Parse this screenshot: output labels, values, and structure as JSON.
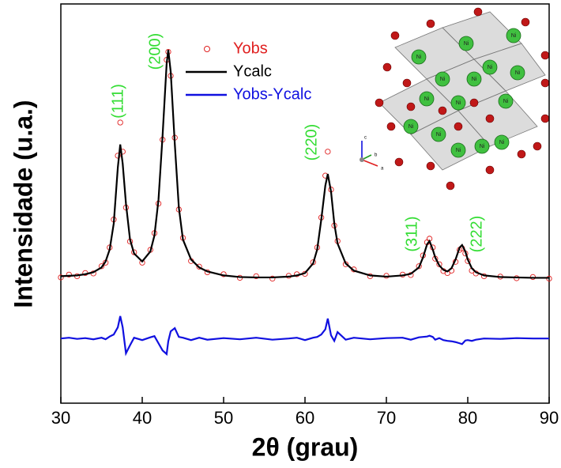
{
  "chart_data": {
    "type": "line",
    "x_label": "2θ (grau)",
    "y_label": "Intensidade (u.a.)",
    "xlim": [
      30,
      90
    ],
    "xticks": [
      30,
      40,
      50,
      60,
      70,
      80,
      90
    ],
    "ylim": [
      0,
      100
    ],
    "legend": "upper center",
    "x": [
      30,
      31,
      32,
      33,
      34,
      35,
      35.5,
      36,
      36.5,
      37,
      37.3,
      37.6,
      38,
      38.5,
      39,
      40,
      41,
      41.5,
      42,
      42.5,
      43,
      43.2,
      43.5,
      44,
      44.5,
      45,
      46,
      47,
      48,
      50,
      52,
      54,
      56,
      58,
      59,
      60,
      61,
      61.5,
      62,
      62.5,
      62.8,
      63.2,
      63.6,
      64,
      65,
      66,
      68,
      70,
      72,
      73,
      74,
      74.5,
      75,
      75.3,
      75.7,
      76,
      76.5,
      77,
      77.5,
      78,
      78.5,
      79,
      79.3,
      79.7,
      80,
      80.5,
      81,
      82,
      84,
      86,
      88,
      90
    ],
    "series": [
      {
        "name": "Yobs",
        "color": "#e02020",
        "marker": "circle",
        "values": [
          31.5,
          32.2,
          31.8,
          32.6,
          32.5,
          34.3,
          35.2,
          39,
          46,
          62,
          70.3,
          63,
          49,
          40.5,
          37.8,
          35.2,
          38.4,
          42.6,
          50,
          66,
          86,
          88,
          82,
          66.5,
          48.5,
          41.4,
          35.6,
          34.2,
          32.8,
          32.3,
          31.4,
          31.8,
          31.2,
          31.9,
          32.3,
          32.4,
          35.3,
          39,
          46.5,
          57,
          63,
          53.5,
          44.5,
          40.6,
          34.8,
          33.5,
          31.8,
          31.9,
          32.2,
          32.1,
          34.3,
          37,
          40.3,
          41.2,
          39,
          36.2,
          34.8,
          33.1,
          32.6,
          33.2,
          35.4,
          38.4,
          38.8,
          37.5,
          35.6,
          33.2,
          32.5,
          31.8,
          31.7,
          31.3,
          31.6,
          31.2
        ]
      },
      {
        "name": "Ycalc",
        "color": "#000000",
        "marker": "line",
        "values": [
          31.8,
          31.9,
          32.0,
          32.3,
          32.8,
          34.0,
          35.5,
          38.5,
          45,
          59,
          64.8,
          60,
          50,
          41,
          37.5,
          35.5,
          38,
          42,
          51,
          67,
          85,
          88.5,
          83,
          65,
          49,
          41,
          36,
          34,
          33,
          32,
          31.6,
          31.5,
          31.5,
          31.7,
          32,
          32.6,
          35,
          38.5,
          46,
          54.5,
          57.4,
          53,
          45,
          40,
          35,
          33.2,
          32,
          31.7,
          32,
          32.4,
          34,
          36.5,
          39.8,
          40.6,
          38.5,
          36.5,
          34.5,
          33.4,
          33,
          33.8,
          36,
          39,
          39.6,
          38,
          36,
          33.8,
          32.8,
          32,
          31.6,
          31.5,
          31.4,
          31.4
        ]
      },
      {
        "name": "Yobs-Ycalc",
        "color": "#1010e0",
        "marker": "line",
        "values": [
          16.2,
          16.4,
          16.1,
          16.3,
          16.0,
          16.4,
          16.0,
          16.7,
          17.2,
          19.0,
          21.8,
          19.0,
          12.5,
          14.5,
          16.4,
          15.8,
          16.5,
          16.8,
          15.0,
          13.2,
          12.3,
          15.5,
          18.0,
          18.8,
          16.6,
          16.4,
          15.8,
          16.4,
          15.9,
          16.3,
          16.0,
          16.4,
          15.9,
          16.2,
          16.4,
          15.8,
          16.4,
          16.6,
          17.2,
          18.5,
          21.2,
          17.0,
          15.6,
          17.8,
          15.9,
          16.4,
          16.0,
          16.3,
          16.4,
          15.9,
          16.5,
          16.6,
          16.7,
          16.9,
          16.6,
          15.9,
          16.3,
          15.8,
          15.6,
          15.5,
          15.3,
          15.0,
          14.8,
          15.7,
          15.8,
          15.6,
          15.9,
          16.2,
          16.1,
          16.3,
          16.2,
          16.2
        ]
      }
    ],
    "annotations": [
      "(111)",
      "(200)",
      "(220)",
      "(311)",
      "(222)"
    ],
    "inset": {
      "atom_label": "Ni",
      "axes": [
        "c",
        "b",
        "a"
      ]
    }
  }
}
